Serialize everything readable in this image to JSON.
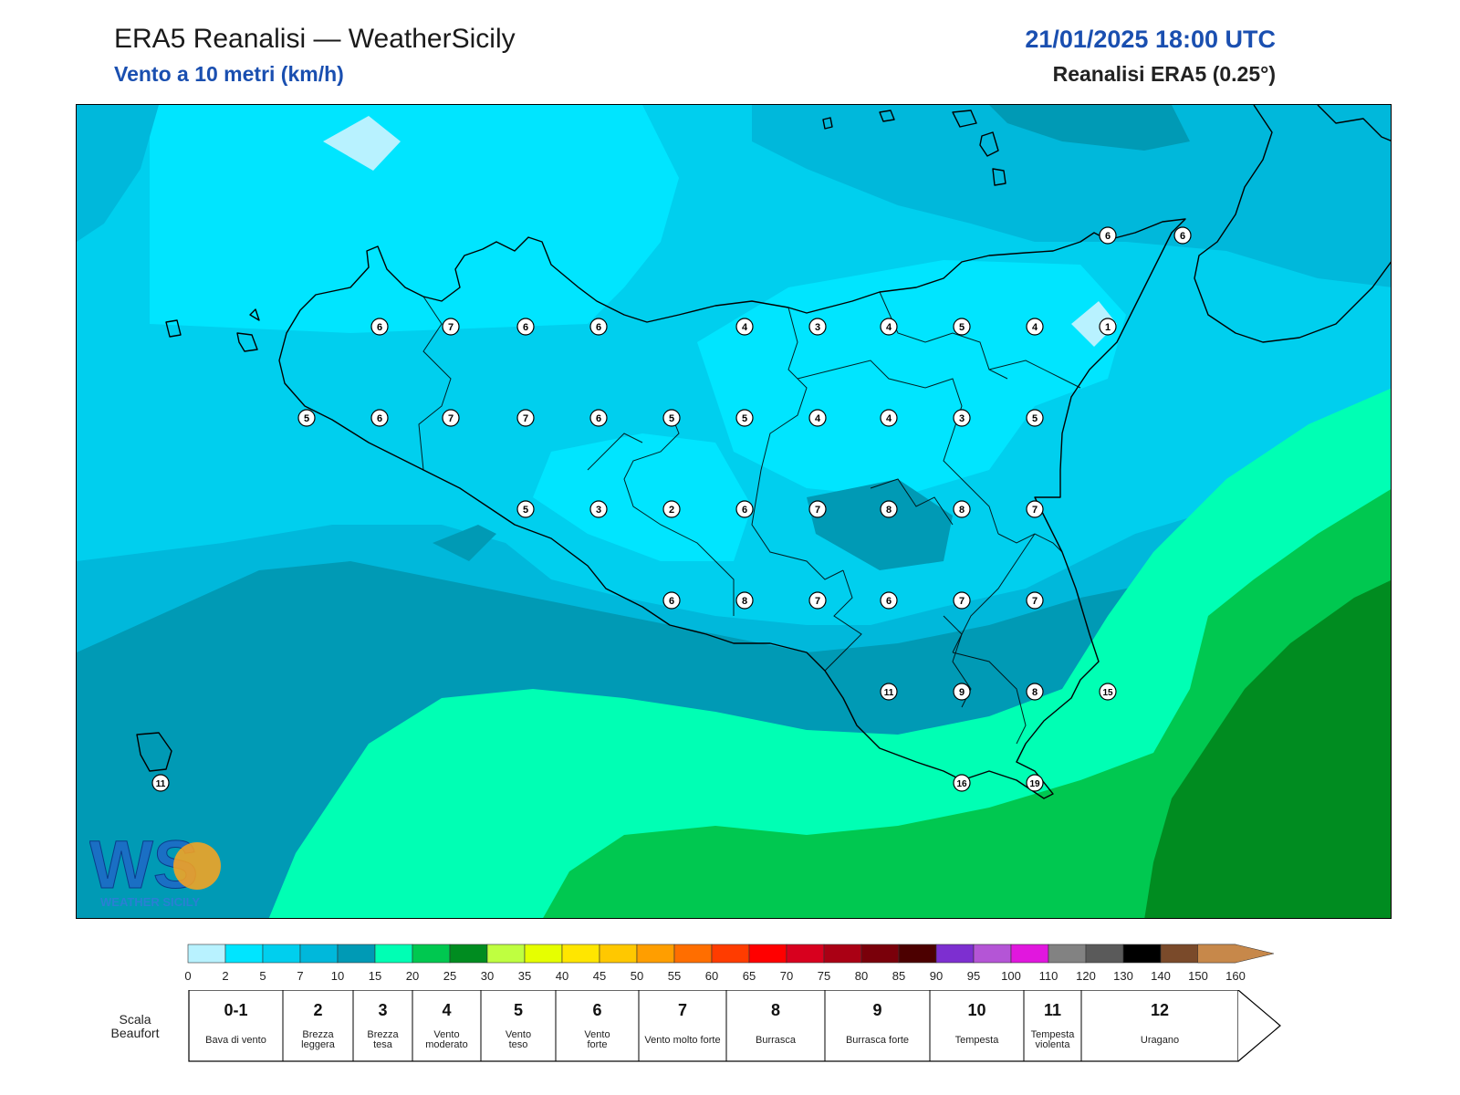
{
  "header": {
    "title": "ERA5 Reanalisi — WeatherSicily",
    "subtitle": "Vento a 10 metri (km/h)",
    "datetime": "21/01/2025 18:00 UTC",
    "model": "Reanalisi ERA5 (0.25°)"
  },
  "logo": {
    "letters": "WS",
    "text": "WEATHER SICILY",
    "icon": "weathersicily-logo"
  },
  "colorbar": {
    "ticks": [
      "0",
      "2",
      "5",
      "7",
      "10",
      "15",
      "20",
      "25",
      "30",
      "35",
      "40",
      "45",
      "50",
      "55",
      "60",
      "65",
      "70",
      "75",
      "80",
      "85",
      "90",
      "95",
      "100",
      "110",
      "120",
      "130",
      "140",
      "150",
      "160"
    ],
    "colors": [
      "#b8f2ff",
      "#00e5ff",
      "#00cfee",
      "#00b8db",
      "#009ab5",
      "#00ffb4",
      "#00c850",
      "#008c20",
      "#bfff40",
      "#e6ff00",
      "#ffe600",
      "#ffc800",
      "#ff9e00",
      "#ff6e00",
      "#ff3c00",
      "#ff0000",
      "#d8001e",
      "#aa0014",
      "#7a000a",
      "#4c0000",
      "#7d2fd0",
      "#b455d6",
      "#e117de",
      "#828282",
      "#5a5a5a",
      "#000000",
      "#7a4a2a",
      "#c7884a"
    ]
  },
  "beaufort": {
    "title": "Scala Beaufort",
    "classes": [
      {
        "num": "0-1",
        "label": "Bava di vento"
      },
      {
        "num": "2",
        "label": "Brezza leggera"
      },
      {
        "num": "3",
        "label": "Brezza tesa"
      },
      {
        "num": "4",
        "label": "Vento moderato"
      },
      {
        "num": "5",
        "label": "Vento teso"
      },
      {
        "num": "6",
        "label": "Vento forte"
      },
      {
        "num": "7",
        "label": "Vento molto forte"
      },
      {
        "num": "8",
        "label": "Burrasca"
      },
      {
        "num": "9",
        "label": "Burrasca forte"
      },
      {
        "num": "10",
        "label": "Tempesta"
      },
      {
        "num": "11",
        "label": "Tempesta violenta"
      },
      {
        "num": "12",
        "label": "Uragano"
      }
    ]
  },
  "stations": [
    "6",
    "7",
    "6",
    "6",
    "4",
    "3",
    "4",
    "5",
    "4",
    "1",
    "6",
    "6",
    "5",
    "6",
    "7",
    "7",
    "6",
    "5",
    "5",
    "4",
    "4",
    "3",
    "5",
    "5",
    "3",
    "2",
    "6",
    "7",
    "8",
    "8",
    "7",
    "6",
    "8",
    "7",
    "6",
    "7",
    "7",
    "11",
    "9",
    "8",
    "15",
    "16",
    "19",
    "11"
  ]
}
